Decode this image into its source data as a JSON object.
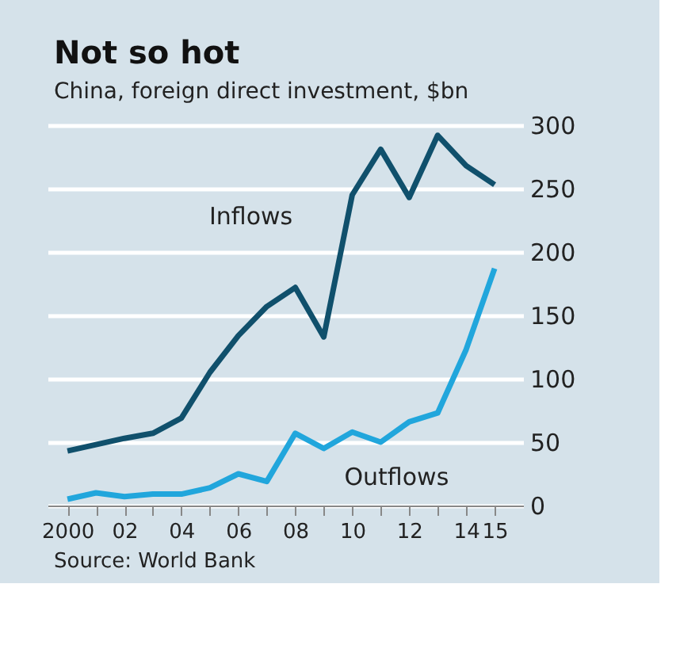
{
  "chart_data": {
    "type": "line",
    "title": "Not so hot",
    "subtitle": "China, foreign direct investment, $bn",
    "x": [
      2000,
      2001,
      2002,
      2003,
      2004,
      2005,
      2006,
      2007,
      2008,
      2009,
      2010,
      2011,
      2012,
      2013,
      2014,
      2015
    ],
    "series": [
      {
        "name": "Inflows",
        "color": "#10506c",
        "values": [
          43,
          48,
          53,
          57,
          69,
          105,
          134,
          157,
          172,
          133,
          245,
          281,
          243,
          292,
          268,
          253
        ]
      },
      {
        "name": "Outflows",
        "color": "#21a6dc",
        "values": [
          5,
          10,
          7,
          9,
          9,
          14,
          25,
          19,
          57,
          45,
          58,
          50,
          66,
          73,
          123,
          187
        ]
      }
    ],
    "xlim": [
      1999.3,
      2016
    ],
    "xticks": [
      2000,
      {
        "value": 2001,
        "label": null
      },
      {
        "value": 2002,
        "label": "02"
      },
      {
        "value": 2003,
        "label": null
      },
      {
        "value": 2004,
        "label": "04"
      },
      {
        "value": 2005,
        "label": null
      },
      {
        "value": 2006,
        "label": "06"
      },
      {
        "value": 2007,
        "label": null
      },
      {
        "value": 2008,
        "label": "08"
      },
      {
        "value": 2009,
        "label": null
      },
      {
        "value": 2010,
        "label": "10"
      },
      {
        "value": 2011,
        "label": null
      },
      {
        "value": 2012,
        "label": "12"
      },
      {
        "value": 2013,
        "label": null
      },
      {
        "value": 2014,
        "label": "14"
      },
      {
        "value": 2015,
        "label": "15"
      }
    ],
    "ylim": [
      0,
      300
    ],
    "yticks": [
      0,
      50,
      100,
      150,
      200,
      250,
      300
    ],
    "grid": "y",
    "legend": false,
    "marker": "none",
    "line_style": "solid",
    "annotations": [
      "Source: World Bank"
    ]
  }
}
